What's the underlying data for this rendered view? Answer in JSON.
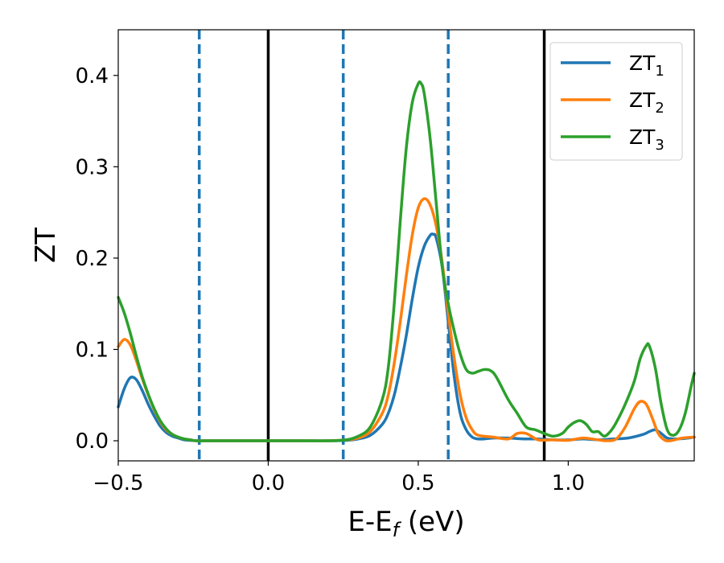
{
  "chart_data": {
    "type": "line",
    "title": "",
    "xlabel": "E-E",
    "xlabel_sub": "f",
    "xlabel_unit": " (eV)",
    "ylabel": "ZT",
    "xlim": [
      -0.5,
      1.42
    ],
    "ylim": [
      -0.022,
      0.45
    ],
    "xticks": [
      -0.5,
      0.0,
      0.5,
      1.0
    ],
    "xtick_labels": [
      "−0.5",
      "0.0",
      "0.5",
      "1.0"
    ],
    "yticks": [
      0.0,
      0.1,
      0.2,
      0.3,
      0.4
    ],
    "ytick_labels": [
      "0.0",
      "0.1",
      "0.2",
      "0.3",
      "0.4"
    ],
    "grid": false,
    "legend_position": "top-right",
    "vlines_solid": [
      0.0,
      0.92
    ],
    "vlines_dashed": [
      -0.23,
      0.25,
      0.6
    ],
    "vline_colors": {
      "solid": "#000000",
      "dashed": "#1f77b4"
    },
    "series": [
      {
        "name": "ZT",
        "sub": "1",
        "color": "#1f77b4",
        "x": [
          -0.5,
          -0.48,
          -0.46,
          -0.44,
          -0.42,
          -0.4,
          -0.38,
          -0.36,
          -0.34,
          -0.32,
          -0.3,
          -0.28,
          -0.26,
          -0.24,
          -0.2,
          -0.1,
          0.0,
          0.1,
          0.2,
          0.26,
          0.3,
          0.34,
          0.38,
          0.4,
          0.42,
          0.44,
          0.46,
          0.48,
          0.5,
          0.52,
          0.54,
          0.55,
          0.56,
          0.58,
          0.6,
          0.62,
          0.64,
          0.66,
          0.68,
          0.7,
          0.72,
          0.75,
          0.8,
          0.85,
          0.9,
          0.95,
          1.0,
          1.05,
          1.1,
          1.15,
          1.2,
          1.25,
          1.27,
          1.29,
          1.31,
          1.33,
          1.36,
          1.4,
          1.42
        ],
        "y": [
          0.037,
          0.057,
          0.069,
          0.067,
          0.055,
          0.04,
          0.027,
          0.016,
          0.009,
          0.005,
          0.003,
          0.001,
          0.0005,
          0.0,
          0.0,
          0.0,
          0.0,
          0.0,
          0.0,
          0.0005,
          0.002,
          0.006,
          0.018,
          0.03,
          0.05,
          0.08,
          0.115,
          0.155,
          0.19,
          0.213,
          0.225,
          0.226,
          0.222,
          0.19,
          0.13,
          0.07,
          0.03,
          0.012,
          0.004,
          0.002,
          0.002,
          0.003,
          0.003,
          0.002,
          0.002,
          0.001,
          0.001,
          0.002,
          0.001,
          0.002,
          0.003,
          0.007,
          0.01,
          0.012,
          0.008,
          0.003,
          0.002,
          0.003,
          0.004
        ]
      },
      {
        "name": "ZT",
        "sub": "2",
        "color": "#ff7f0e",
        "x": [
          -0.5,
          -0.48,
          -0.46,
          -0.44,
          -0.42,
          -0.4,
          -0.38,
          -0.36,
          -0.34,
          -0.32,
          -0.3,
          -0.28,
          -0.26,
          -0.24,
          -0.2,
          -0.1,
          0.0,
          0.1,
          0.2,
          0.26,
          0.3,
          0.34,
          0.38,
          0.4,
          0.42,
          0.44,
          0.46,
          0.48,
          0.5,
          0.52,
          0.54,
          0.56,
          0.58,
          0.6,
          0.62,
          0.64,
          0.66,
          0.68,
          0.7,
          0.75,
          0.8,
          0.83,
          0.86,
          0.9,
          0.95,
          1.0,
          1.05,
          1.1,
          1.13,
          1.16,
          1.19,
          1.22,
          1.24,
          1.26,
          1.28,
          1.3,
          1.32,
          1.34,
          1.38,
          1.42
        ],
        "y": [
          0.103,
          0.111,
          0.105,
          0.088,
          0.068,
          0.05,
          0.034,
          0.021,
          0.012,
          0.007,
          0.004,
          0.002,
          0.001,
          0.0,
          0.0,
          0.0,
          0.0,
          0.0,
          0.0,
          0.001,
          0.003,
          0.01,
          0.03,
          0.05,
          0.085,
          0.13,
          0.18,
          0.225,
          0.255,
          0.265,
          0.258,
          0.235,
          0.195,
          0.14,
          0.09,
          0.05,
          0.025,
          0.012,
          0.006,
          0.004,
          0.002,
          0.008,
          0.008,
          0.001,
          0.001,
          0.0005,
          0.003,
          0.001,
          0.0,
          0.002,
          0.015,
          0.035,
          0.043,
          0.04,
          0.025,
          0.008,
          0.001,
          0.0,
          0.003,
          0.004
        ]
      },
      {
        "name": "ZT",
        "sub": "3",
        "color": "#2ca02c",
        "x": [
          -0.5,
          -0.48,
          -0.46,
          -0.44,
          -0.42,
          -0.4,
          -0.38,
          -0.36,
          -0.34,
          -0.32,
          -0.3,
          -0.28,
          -0.26,
          -0.24,
          -0.2,
          -0.1,
          0.0,
          0.1,
          0.2,
          0.26,
          0.3,
          0.34,
          0.38,
          0.4,
          0.42,
          0.44,
          0.46,
          0.48,
          0.5,
          0.51,
          0.52,
          0.54,
          0.56,
          0.58,
          0.6,
          0.62,
          0.64,
          0.66,
          0.68,
          0.7,
          0.72,
          0.74,
          0.76,
          0.8,
          0.83,
          0.86,
          0.89,
          0.92,
          0.95,
          0.98,
          1.0,
          1.02,
          1.04,
          1.06,
          1.08,
          1.1,
          1.12,
          1.14,
          1.16,
          1.19,
          1.22,
          1.24,
          1.26,
          1.27,
          1.29,
          1.31,
          1.33,
          1.35,
          1.37,
          1.39,
          1.41,
          1.42
        ],
        "y": [
          0.157,
          0.14,
          0.118,
          0.093,
          0.07,
          0.051,
          0.035,
          0.022,
          0.013,
          0.007,
          0.004,
          0.002,
          0.001,
          0.0,
          0.0,
          0.0,
          0.0,
          0.0,
          0.0,
          0.001,
          0.005,
          0.015,
          0.045,
          0.08,
          0.15,
          0.24,
          0.32,
          0.37,
          0.391,
          0.391,
          0.38,
          0.33,
          0.26,
          0.19,
          0.15,
          0.12,
          0.095,
          0.078,
          0.074,
          0.076,
          0.078,
          0.077,
          0.07,
          0.045,
          0.03,
          0.015,
          0.012,
          0.008,
          0.005,
          0.008,
          0.015,
          0.02,
          0.022,
          0.018,
          0.01,
          0.01,
          0.005,
          0.01,
          0.02,
          0.04,
          0.065,
          0.09,
          0.104,
          0.104,
          0.08,
          0.04,
          0.012,
          0.006,
          0.012,
          0.03,
          0.06,
          0.074
        ]
      }
    ]
  }
}
